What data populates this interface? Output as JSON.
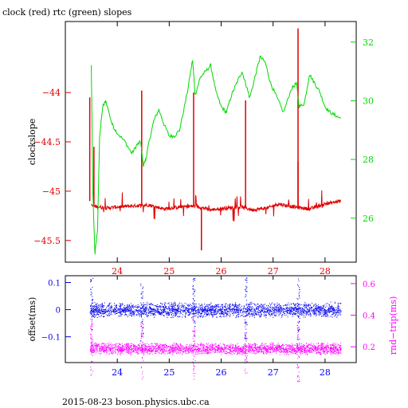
{
  "title": "clock (red) rtc (green) slopes",
  "footer": "2015-08-23  boson.physics.ubc.ca",
  "colors": {
    "red": "#e00000",
    "green": "#00d800",
    "blue": "#0000ee",
    "magenta": "#ff00ff",
    "frame": "#000000"
  },
  "chart_data": [
    {
      "type": "line",
      "title": "clock (red) rtc (green) slopes",
      "xlabel": "",
      "ylabel": "clockslope",
      "y2label": "",
      "xlim": [
        23.0,
        28.6
      ],
      "ylim": [
        -45.72,
        -43.28
      ],
      "y2lim": [
        24.5,
        32.7
      ],
      "xticks": [
        24,
        25,
        26,
        27,
        28
      ],
      "yticks": [
        -44,
        -44.5,
        -45,
        -45.5
      ],
      "ytick_labels": [
        "−44",
        "−44.5",
        "−45",
        "−45.5"
      ],
      "y2ticks": [
        26,
        28,
        30,
        32
      ],
      "series": [
        {
          "axis": "left",
          "color": "red",
          "baseline": [
            [
              23.5,
              -45.15
            ],
            [
              23.8,
              -45.17
            ],
            [
              24.0,
              -45.16
            ],
            [
              24.3,
              -45.15
            ],
            [
              24.6,
              -45.14
            ],
            [
              24.9,
              -45.18
            ],
            [
              25.2,
              -45.16
            ],
            [
              25.5,
              -45.15
            ],
            [
              25.8,
              -45.19
            ],
            [
              26.1,
              -45.17
            ],
            [
              26.4,
              -45.16
            ],
            [
              26.6,
              -45.19
            ],
            [
              26.9,
              -45.17
            ],
            [
              27.1,
              -45.13
            ],
            [
              27.4,
              -45.16
            ],
            [
              27.7,
              -45.18
            ],
            [
              28.0,
              -45.13
            ],
            [
              28.3,
              -45.1
            ]
          ],
          "spikes": [
            [
              23.47,
              -44.05
            ],
            [
              23.55,
              -44.55
            ],
            [
              24.47,
              -43.98
            ],
            [
              25.47,
              -44.0
            ],
            [
              25.62,
              -45.6
            ],
            [
              26.47,
              -44.08
            ],
            [
              27.48,
              -43.35
            ],
            [
              27.48,
              -44.7
            ]
          ]
        },
        {
          "axis": "right",
          "color": "green",
          "points": [
            [
              23.5,
              31.2
            ],
            [
              23.53,
              26.8
            ],
            [
              23.57,
              24.8
            ],
            [
              23.62,
              25.6
            ],
            [
              23.66,
              28.8
            ],
            [
              23.72,
              29.8
            ],
            [
              23.78,
              30.0
            ],
            [
              23.9,
              29.2
            ],
            [
              24.0,
              28.9
            ],
            [
              24.15,
              28.6
            ],
            [
              24.28,
              28.2
            ],
            [
              24.38,
              28.5
            ],
            [
              24.45,
              28.6
            ],
            [
              24.5,
              27.8
            ],
            [
              24.55,
              28.0
            ],
            [
              24.6,
              28.5
            ],
            [
              24.7,
              29.3
            ],
            [
              24.8,
              29.7
            ],
            [
              24.9,
              29.2
            ],
            [
              25.0,
              28.8
            ],
            [
              25.1,
              28.8
            ],
            [
              25.2,
              29.0
            ],
            [
              25.35,
              30.3
            ],
            [
              25.45,
              31.4
            ],
            [
              25.5,
              30.2
            ],
            [
              25.6,
              30.8
            ],
            [
              25.7,
              31.0
            ],
            [
              25.8,
              31.2
            ],
            [
              25.9,
              30.3
            ],
            [
              26.0,
              29.8
            ],
            [
              26.1,
              29.6
            ],
            [
              26.2,
              30.2
            ],
            [
              26.3,
              30.6
            ],
            [
              26.4,
              31.0
            ],
            [
              26.47,
              30.6
            ],
            [
              26.55,
              30.1
            ],
            [
              26.65,
              30.8
            ],
            [
              26.75,
              31.5
            ],
            [
              26.85,
              31.3
            ],
            [
              26.95,
              30.6
            ],
            [
              27.05,
              30.2
            ],
            [
              27.2,
              29.6
            ],
            [
              27.35,
              30.4
            ],
            [
              27.45,
              30.6
            ],
            [
              27.5,
              29.8
            ],
            [
              27.6,
              29.9
            ],
            [
              27.7,
              30.9
            ],
            [
              27.8,
              30.6
            ],
            [
              27.9,
              30.3
            ],
            [
              28.0,
              29.8
            ],
            [
              28.1,
              29.6
            ],
            [
              28.2,
              29.5
            ],
            [
              28.3,
              29.4
            ]
          ]
        }
      ]
    },
    {
      "type": "scatter",
      "xlabel": "",
      "ylabel": "offset(ms)",
      "y2label": "rnd−trip(ms)",
      "xlim": [
        23.0,
        28.6
      ],
      "ylim": [
        -0.195,
        0.125
      ],
      "y2lim": [
        0.1,
        0.65
      ],
      "xticks": [
        24,
        25,
        26,
        27,
        28
      ],
      "yticks": [
        0.1,
        0,
        -0.1
      ],
      "ytick_labels": [
        "0.1",
        "0",
        "−0.1"
      ],
      "y2ticks": [
        0.6,
        0.4,
        0.2
      ],
      "series": [
        {
          "axis": "left",
          "color": "blue",
          "band_center": 0.0,
          "band_halfwidth": 0.03,
          "x_range": [
            23.47,
            28.3
          ]
        },
        {
          "axis": "right",
          "color": "magenta",
          "band_center": 0.19,
          "band_halfwidth": 0.04,
          "x_range": [
            23.47,
            28.3
          ]
        }
      ]
    }
  ]
}
